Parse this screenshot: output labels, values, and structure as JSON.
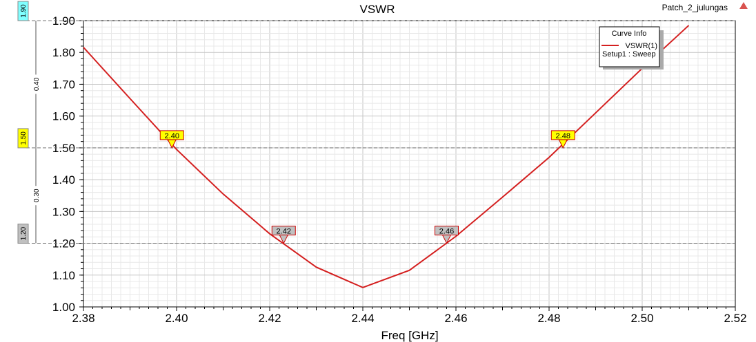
{
  "chart_data": {
    "type": "line",
    "title": "VSWR",
    "project_label": "Patch_2_julungas",
    "xlabel": "Freq [GHz]",
    "ylabel": "",
    "xlim": [
      2.38,
      2.52
    ],
    "ylim": [
      1.0,
      1.9
    ],
    "xticks": [
      "2.38",
      "2.40",
      "2.42",
      "2.44",
      "2.46",
      "2.48",
      "2.50",
      "2.52"
    ],
    "yticks": [
      "1.00",
      "1.10",
      "1.20",
      "1.30",
      "1.40",
      "1.50",
      "1.60",
      "1.70",
      "1.80",
      "1.90"
    ],
    "grid": true,
    "legend": {
      "title": "Curve Info",
      "placement": "top-right",
      "entries": [
        {
          "name": "VSWR(1)",
          "sub": "Setup1 : Sweep",
          "color": "#d41f1f"
        }
      ]
    },
    "series": [
      {
        "name": "VSWR(1)",
        "color": "#d41f1f",
        "x": [
          2.38,
          2.39,
          2.4,
          2.41,
          2.42,
          2.43,
          2.44,
          2.45,
          2.46,
          2.47,
          2.48,
          2.49,
          2.5,
          2.51
        ],
        "y": [
          1.816,
          1.655,
          1.495,
          1.355,
          1.23,
          1.125,
          1.061,
          1.115,
          1.222,
          1.345,
          1.47,
          1.61,
          1.75,
          1.885
        ]
      }
    ],
    "markers": [
      {
        "label": "2.40",
        "x": 2.399,
        "y": 1.5,
        "color": "#ffff00"
      },
      {
        "label": "2.42",
        "x": 2.423,
        "y": 1.2,
        "color": "#c0c0c0"
      },
      {
        "label": "2.46",
        "x": 2.458,
        "y": 1.2,
        "color": "#c0c0c0"
      },
      {
        "label": "2.48",
        "x": 2.483,
        "y": 1.5,
        "color": "#ffff00"
      }
    ],
    "y_cursors": [
      {
        "label": "1.90",
        "y": 1.9,
        "color": "#80ffff"
      },
      {
        "label": "1.50",
        "y": 1.5,
        "color": "#ffff00"
      },
      {
        "label": "1.20",
        "y": 1.2,
        "color": "#c0c0c0"
      }
    ],
    "y_deltas": [
      {
        "label": "0.40",
        "from": 1.5,
        "to": 1.9
      },
      {
        "label": "0.30",
        "from": 1.2,
        "to": 1.5
      }
    ]
  }
}
